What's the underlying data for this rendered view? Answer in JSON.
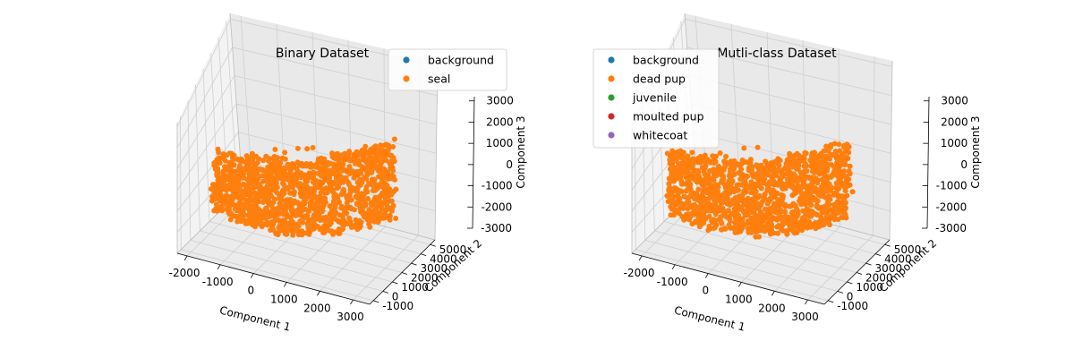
{
  "chart_data": [
    {
      "type": "scatter3d",
      "title": "Binary Dataset",
      "xlabel": "Component 1",
      "ylabel": "Component 2",
      "zlabel": "Component 3",
      "xticks": [
        -2000,
        -1000,
        0,
        1000,
        2000,
        3000
      ],
      "yticks": [
        -1000,
        0,
        1000,
        2000,
        3000,
        4000,
        5000
      ],
      "zticks": [
        -3000,
        -2000,
        -1000,
        0,
        1000,
        2000,
        3000
      ],
      "xlim": [
        -2300,
        3500
      ],
      "ylim": [
        -1400,
        5500
      ],
      "zlim": [
        -3000,
        3200
      ],
      "legend_position": "top-right",
      "series": [
        {
          "name": "background",
          "color": "#1f77b4",
          "visible_points": 0
        },
        {
          "name": "seal",
          "color": "#ff7f0e",
          "visible_points": "dense cloud"
        }
      ]
    },
    {
      "type": "scatter3d",
      "title": "Mutli-class Dataset",
      "xlabel": "Component 1",
      "ylabel": "Component 2",
      "zlabel": "Component 3",
      "xticks": [
        -2000,
        -1000,
        0,
        1000,
        2000,
        3000
      ],
      "yticks": [
        -1000,
        0,
        1000,
        2000,
        3000,
        4000,
        5000
      ],
      "zticks": [
        -3000,
        -2000,
        -1000,
        0,
        1000,
        2000,
        3000
      ],
      "xlim": [
        -2300,
        3500
      ],
      "ylim": [
        -1400,
        5500
      ],
      "zlim": [
        -3000,
        3200
      ],
      "legend_position": "top-left",
      "series": [
        {
          "name": "background",
          "color": "#1f77b4",
          "visible_points": 0
        },
        {
          "name": "dead pup",
          "color": "#ff7f0e",
          "visible_points": "dense cloud"
        },
        {
          "name": "juvenile",
          "color": "#2ca02c",
          "visible_points": 0
        },
        {
          "name": "moulted pup",
          "color": "#d62728",
          "visible_points": 0
        },
        {
          "name": "whitecoat",
          "color": "#9467bd",
          "visible_points": 0
        }
      ]
    }
  ]
}
